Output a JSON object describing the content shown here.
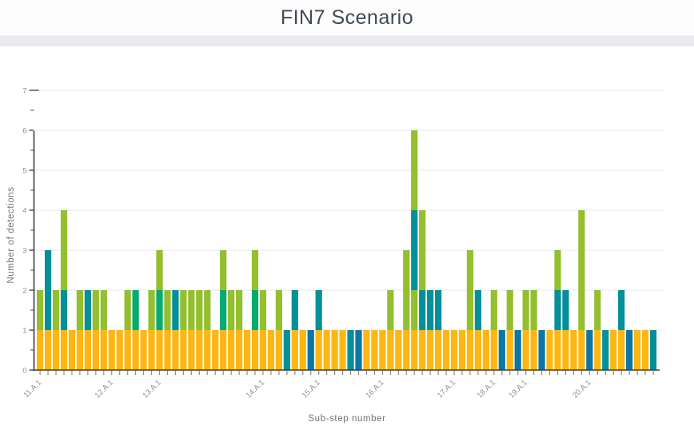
{
  "page": {
    "title": "FIN7 Scenario"
  },
  "chart_data": {
    "type": "bar",
    "stacked": true,
    "title": "FIN7 Scenario",
    "xlabel": "Sub-step number",
    "ylabel": "Number of detections",
    "ylim": [
      0,
      7
    ],
    "yticks": [
      0,
      1,
      2,
      3,
      4,
      5,
      6,
      7
    ],
    "grid": true,
    "legend": "none",
    "bar_count": 78,
    "colors": {
      "y": "#fdb714",
      "g": "#94bf2e",
      "e": "#06ab70",
      "t": "#049099",
      "b": "#0e76a4"
    },
    "color_names": {
      "y": "yellow",
      "g": "yellow-green",
      "e": "emerald-green",
      "t": "teal",
      "b": "dark-blue"
    },
    "x_tick_labels": [
      {
        "bar": 1,
        "label": "11.A.1"
      },
      {
        "bar": 10,
        "label": "12.A.1"
      },
      {
        "bar": 16,
        "label": "13.A.1"
      },
      {
        "bar": 29,
        "label": "14.A.1"
      },
      {
        "bar": 36,
        "label": "15.A.1"
      },
      {
        "bar": 44,
        "label": "16.A.1"
      },
      {
        "bar": 53,
        "label": "17.A.1"
      },
      {
        "bar": 58,
        "label": "18.A.1"
      },
      {
        "bar": 62,
        "label": "19.A.1"
      },
      {
        "bar": 70,
        "label": "20.A.1"
      }
    ],
    "bars": [
      {
        "n": 1,
        "total": 2,
        "segments": [
          [
            "y",
            1
          ],
          [
            "g",
            1
          ]
        ]
      },
      {
        "n": 2,
        "total": 3,
        "segments": [
          [
            "y",
            1
          ],
          [
            "t",
            2
          ]
        ]
      },
      {
        "n": 3,
        "total": 2,
        "segments": [
          [
            "y",
            1
          ],
          [
            "g",
            1
          ]
        ]
      },
      {
        "n": 4,
        "total": 4,
        "segments": [
          [
            "y",
            1
          ],
          [
            "t",
            1
          ],
          [
            "g",
            2
          ]
        ]
      },
      {
        "n": 5,
        "total": 1,
        "segments": [
          [
            "y",
            1
          ]
        ]
      },
      {
        "n": 6,
        "total": 2,
        "segments": [
          [
            "y",
            1
          ],
          [
            "g",
            1
          ]
        ]
      },
      {
        "n": 7,
        "total": 2,
        "segments": [
          [
            "y",
            1
          ],
          [
            "t",
            1
          ]
        ]
      },
      {
        "n": 8,
        "total": 2,
        "segments": [
          [
            "y",
            1
          ],
          [
            "g",
            1
          ]
        ]
      },
      {
        "n": 9,
        "total": 2,
        "segments": [
          [
            "y",
            1
          ],
          [
            "g",
            1
          ]
        ]
      },
      {
        "n": 10,
        "total": 1,
        "segments": [
          [
            "y",
            1
          ]
        ]
      },
      {
        "n": 11,
        "total": 1,
        "segments": [
          [
            "y",
            1
          ]
        ]
      },
      {
        "n": 12,
        "total": 2,
        "segments": [
          [
            "y",
            1
          ],
          [
            "g",
            1
          ]
        ]
      },
      {
        "n": 13,
        "total": 2,
        "segments": [
          [
            "y",
            1
          ],
          [
            "e",
            1
          ]
        ]
      },
      {
        "n": 14,
        "total": 1,
        "segments": [
          [
            "y",
            1
          ]
        ]
      },
      {
        "n": 15,
        "total": 2,
        "segments": [
          [
            "y",
            1
          ],
          [
            "g",
            1
          ]
        ]
      },
      {
        "n": 16,
        "total": 3,
        "segments": [
          [
            "y",
            1
          ],
          [
            "e",
            1
          ],
          [
            "g",
            1
          ]
        ]
      },
      {
        "n": 17,
        "total": 2,
        "segments": [
          [
            "y",
            1
          ],
          [
            "g",
            1
          ]
        ]
      },
      {
        "n": 18,
        "total": 2,
        "segments": [
          [
            "y",
            1
          ],
          [
            "t",
            1
          ]
        ]
      },
      {
        "n": 19,
        "total": 2,
        "segments": [
          [
            "y",
            1
          ],
          [
            "g",
            1
          ]
        ]
      },
      {
        "n": 20,
        "total": 2,
        "segments": [
          [
            "y",
            1
          ],
          [
            "g",
            1
          ]
        ]
      },
      {
        "n": 21,
        "total": 2,
        "segments": [
          [
            "y",
            1
          ],
          [
            "g",
            1
          ]
        ]
      },
      {
        "n": 22,
        "total": 2,
        "segments": [
          [
            "y",
            1
          ],
          [
            "g",
            1
          ]
        ]
      },
      {
        "n": 23,
        "total": 1,
        "segments": [
          [
            "y",
            1
          ]
        ]
      },
      {
        "n": 24,
        "total": 3,
        "segments": [
          [
            "y",
            1
          ],
          [
            "e",
            1
          ],
          [
            "g",
            1
          ]
        ]
      },
      {
        "n": 25,
        "total": 2,
        "segments": [
          [
            "y",
            1
          ],
          [
            "g",
            1
          ]
        ]
      },
      {
        "n": 26,
        "total": 2,
        "segments": [
          [
            "y",
            1
          ],
          [
            "g",
            1
          ]
        ]
      },
      {
        "n": 27,
        "total": 1,
        "segments": [
          [
            "y",
            1
          ]
        ]
      },
      {
        "n": 28,
        "total": 3,
        "segments": [
          [
            "y",
            1
          ],
          [
            "e",
            1
          ],
          [
            "g",
            1
          ]
        ]
      },
      {
        "n": 29,
        "total": 2,
        "segments": [
          [
            "y",
            1
          ],
          [
            "g",
            1
          ]
        ]
      },
      {
        "n": 30,
        "total": 1,
        "segments": [
          [
            "y",
            1
          ]
        ]
      },
      {
        "n": 31,
        "total": 2,
        "segments": [
          [
            "y",
            1
          ],
          [
            "g",
            1
          ]
        ]
      },
      {
        "n": 32,
        "total": 1,
        "segments": [
          [
            "t",
            1
          ]
        ]
      },
      {
        "n": 33,
        "total": 2,
        "segments": [
          [
            "y",
            1
          ],
          [
            "t",
            1
          ]
        ]
      },
      {
        "n": 34,
        "total": 1,
        "segments": [
          [
            "y",
            1
          ]
        ]
      },
      {
        "n": 35,
        "total": 1,
        "segments": [
          [
            "b",
            1
          ]
        ]
      },
      {
        "n": 36,
        "total": 2,
        "segments": [
          [
            "y",
            1
          ],
          [
            "t",
            1
          ]
        ]
      },
      {
        "n": 37,
        "total": 1,
        "segments": [
          [
            "y",
            1
          ]
        ]
      },
      {
        "n": 38,
        "total": 1,
        "segments": [
          [
            "y",
            1
          ]
        ]
      },
      {
        "n": 39,
        "total": 1,
        "segments": [
          [
            "y",
            1
          ]
        ]
      },
      {
        "n": 40,
        "total": 1,
        "segments": [
          [
            "t",
            1
          ]
        ]
      },
      {
        "n": 41,
        "total": 1,
        "segments": [
          [
            "b",
            1
          ]
        ]
      },
      {
        "n": 42,
        "total": 1,
        "segments": [
          [
            "y",
            1
          ]
        ]
      },
      {
        "n": 43,
        "total": 1,
        "segments": [
          [
            "y",
            1
          ]
        ]
      },
      {
        "n": 44,
        "total": 1,
        "segments": [
          [
            "y",
            1
          ]
        ]
      },
      {
        "n": 45,
        "total": 2,
        "segments": [
          [
            "y",
            1
          ],
          [
            "g",
            1
          ]
        ]
      },
      {
        "n": 46,
        "total": 1,
        "segments": [
          [
            "y",
            1
          ]
        ]
      },
      {
        "n": 47,
        "total": 3,
        "segments": [
          [
            "y",
            1
          ],
          [
            "g",
            2
          ]
        ]
      },
      {
        "n": 48,
        "total": 6,
        "segments": [
          [
            "y",
            1
          ],
          [
            "g",
            1
          ],
          [
            "t",
            2
          ],
          [
            "g",
            2
          ]
        ]
      },
      {
        "n": 49,
        "total": 4,
        "segments": [
          [
            "y",
            1
          ],
          [
            "t",
            1
          ],
          [
            "g",
            2
          ]
        ]
      },
      {
        "n": 50,
        "total": 2,
        "segments": [
          [
            "y",
            1
          ],
          [
            "t",
            1
          ]
        ]
      },
      {
        "n": 51,
        "total": 2,
        "segments": [
          [
            "y",
            1
          ],
          [
            "t",
            1
          ]
        ]
      },
      {
        "n": 52,
        "total": 1,
        "segments": [
          [
            "y",
            1
          ]
        ]
      },
      {
        "n": 53,
        "total": 1,
        "segments": [
          [
            "y",
            1
          ]
        ]
      },
      {
        "n": 54,
        "total": 1,
        "segments": [
          [
            "y",
            1
          ]
        ]
      },
      {
        "n": 55,
        "total": 3,
        "segments": [
          [
            "y",
            1
          ],
          [
            "g",
            2
          ]
        ]
      },
      {
        "n": 56,
        "total": 2,
        "segments": [
          [
            "y",
            1
          ],
          [
            "t",
            1
          ]
        ]
      },
      {
        "n": 57,
        "total": 1,
        "segments": [
          [
            "y",
            1
          ]
        ]
      },
      {
        "n": 58,
        "total": 2,
        "segments": [
          [
            "y",
            1
          ],
          [
            "g",
            1
          ]
        ]
      },
      {
        "n": 59,
        "total": 1,
        "segments": [
          [
            "b",
            1
          ]
        ]
      },
      {
        "n": 60,
        "total": 2,
        "segments": [
          [
            "y",
            1
          ],
          [
            "g",
            1
          ]
        ]
      },
      {
        "n": 61,
        "total": 1,
        "segments": [
          [
            "b",
            1
          ]
        ]
      },
      {
        "n": 62,
        "total": 2,
        "segments": [
          [
            "y",
            1
          ],
          [
            "g",
            1
          ]
        ]
      },
      {
        "n": 63,
        "total": 2,
        "segments": [
          [
            "y",
            1
          ],
          [
            "g",
            1
          ]
        ]
      },
      {
        "n": 64,
        "total": 1,
        "segments": [
          [
            "b",
            1
          ]
        ]
      },
      {
        "n": 65,
        "total": 1,
        "segments": [
          [
            "y",
            1
          ]
        ]
      },
      {
        "n": 66,
        "total": 3,
        "segments": [
          [
            "y",
            1
          ],
          [
            "t",
            1
          ],
          [
            "g",
            1
          ]
        ]
      },
      {
        "n": 67,
        "total": 2,
        "segments": [
          [
            "y",
            1
          ],
          [
            "t",
            1
          ]
        ]
      },
      {
        "n": 68,
        "total": 1,
        "segments": [
          [
            "y",
            1
          ]
        ]
      },
      {
        "n": 69,
        "total": 4,
        "segments": [
          [
            "y",
            1
          ],
          [
            "g",
            3
          ]
        ]
      },
      {
        "n": 70,
        "total": 1,
        "segments": [
          [
            "b",
            1
          ]
        ]
      },
      {
        "n": 71,
        "total": 2,
        "segments": [
          [
            "y",
            1
          ],
          [
            "g",
            1
          ]
        ]
      },
      {
        "n": 72,
        "total": 1,
        "segments": [
          [
            "t",
            1
          ]
        ]
      },
      {
        "n": 73,
        "total": 1,
        "segments": [
          [
            "y",
            1
          ]
        ]
      },
      {
        "n": 74,
        "total": 2,
        "segments": [
          [
            "y",
            1
          ],
          [
            "t",
            1
          ]
        ]
      },
      {
        "n": 75,
        "total": 1,
        "segments": [
          [
            "b",
            1
          ]
        ]
      },
      {
        "n": 76,
        "total": 1,
        "segments": [
          [
            "y",
            1
          ]
        ]
      },
      {
        "n": 77,
        "total": 1,
        "segments": [
          [
            "y",
            1
          ]
        ]
      },
      {
        "n": 78,
        "total": 1,
        "segments": [
          [
            "t",
            1
          ]
        ]
      }
    ],
    "style": {
      "axis_color": "#3c3c3c",
      "grid_color": "#efefef",
      "tick_label_color": "#8a8f94",
      "axis_title_color": "#6d757d",
      "title_color": "#3e4a56",
      "background": "#ffffff",
      "header_band": "#e9ebee"
    }
  }
}
